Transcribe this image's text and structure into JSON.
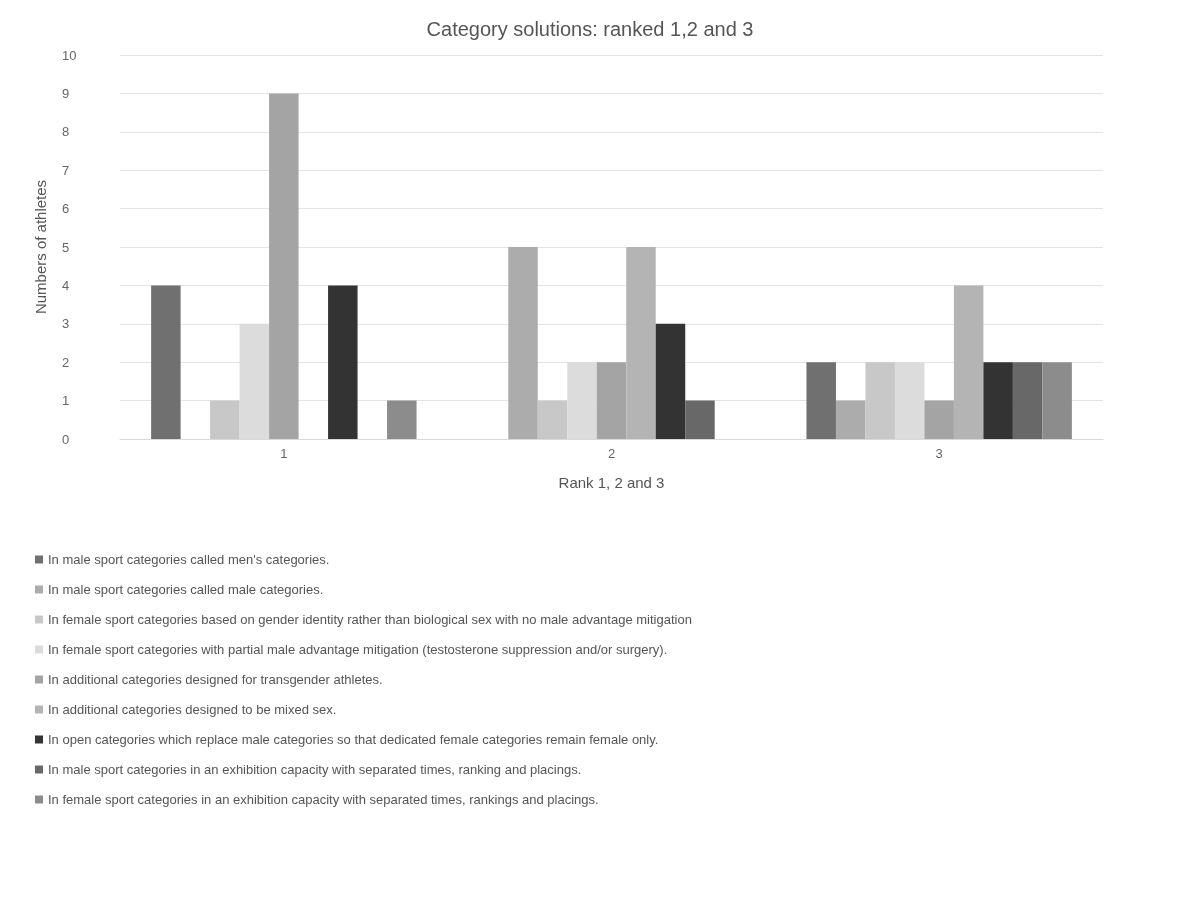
{
  "chart_data": {
    "type": "bar",
    "title": "Category solutions: ranked 1,2 and 3",
    "xlabel": "Rank 1, 2 and 3",
    "ylabel": "Numbers of athletes",
    "categories": [
      "1",
      "2",
      "3"
    ],
    "series": [
      {
        "name": "In male sport categories called men's categories.",
        "color": "#707070",
        "values": [
          4,
          0,
          2
        ]
      },
      {
        "name": "In male sport categories called male categories.",
        "color": "#acacac",
        "values": [
          0,
          5,
          1
        ]
      },
      {
        "name": "In female sport categories based on gender identity rather than biological sex with no male advantage mitigation",
        "color": "#c8c8c8",
        "values": [
          1,
          1,
          2
        ]
      },
      {
        "name": "In female sport categories with partial male advantage mitigation (testosterone suppression and/or surgery).",
        "color": "#dcdcdc",
        "values": [
          3,
          2,
          2
        ]
      },
      {
        "name": "In additional categories designed for transgender athletes.",
        "color": "#a4a4a4",
        "values": [
          9,
          2,
          1
        ]
      },
      {
        "name": "In additional categories designed to be mixed sex.",
        "color": "#b4b4b4",
        "values": [
          0,
          5,
          4
        ]
      },
      {
        "name": "In open categories which replace male categories so that dedicated female categories remain female only.",
        "color": "#333333",
        "values": [
          4,
          3,
          2
        ]
      },
      {
        "name": "In male sport categories in an exhibition capacity with separated times, ranking and placings.",
        "color": "#686868",
        "values": [
          0,
          1,
          2
        ]
      },
      {
        "name": "In female sport categories in an exhibition capacity with separated times, rankings and placings.",
        "color": "#8c8c8c",
        "values": [
          1,
          0,
          2
        ]
      }
    ],
    "ylim": [
      0,
      10
    ],
    "yticks": [
      0,
      1,
      2,
      3,
      4,
      5,
      6,
      7,
      8,
      9,
      10
    ],
    "grid": "y",
    "legend": "bottom"
  }
}
